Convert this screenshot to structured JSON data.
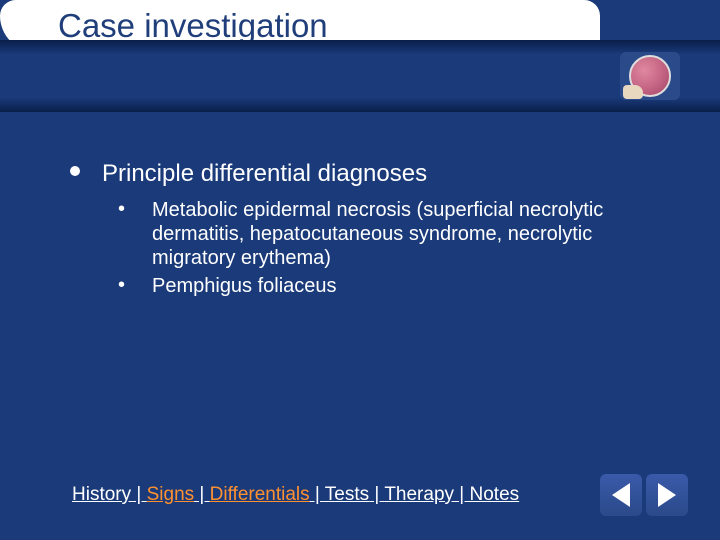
{
  "slide": {
    "title": "Case investigation",
    "main_bullet": "Principle differential diagnoses",
    "sub_items": [
      "Metabolic epidermal necrosis (superficial necrolytic dermatitis, hepatocutaneous syndrome, necrolytic migratory erythema)",
      "Pemphigus foliaceus"
    ]
  },
  "nav": {
    "items": [
      {
        "label": "History",
        "active": false
      },
      {
        "label": "Signs",
        "active": false
      },
      {
        "label": "Differentials",
        "active": true
      },
      {
        "label": "Tests",
        "active": false
      },
      {
        "label": "Therapy",
        "active": false
      },
      {
        "label": "Notes",
        "active": false
      }
    ],
    "separator": "  |  "
  },
  "colors": {
    "background": "#1a3a7a",
    "title_text": "#203e7a",
    "body_text": "#ffffff",
    "active_link": "#ff9030"
  }
}
